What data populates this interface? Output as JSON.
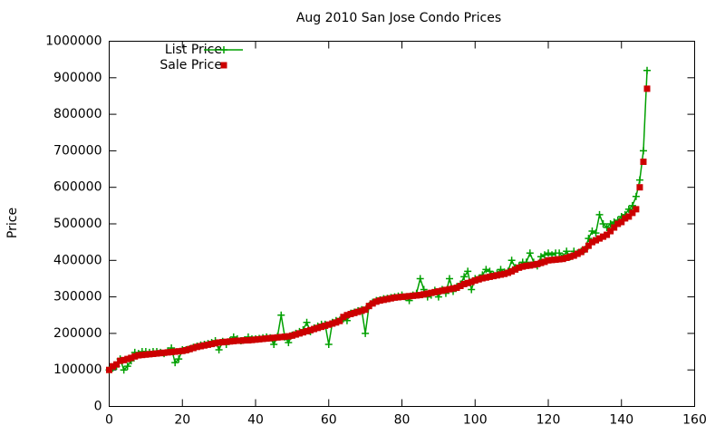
{
  "chart_data": {
    "type": "line",
    "title": "Aug 2010 San Jose Condo Prices",
    "y_label": "Price",
    "x": [
      0,
      1,
      2,
      3,
      4,
      5,
      6,
      7,
      8,
      9,
      10,
      11,
      12,
      13,
      14,
      15,
      16,
      17,
      18,
      19,
      20,
      21,
      22,
      23,
      24,
      25,
      26,
      27,
      28,
      29,
      30,
      31,
      32,
      33,
      34,
      35,
      36,
      37,
      38,
      39,
      40,
      41,
      42,
      43,
      44,
      45,
      46,
      47,
      48,
      49,
      50,
      51,
      52,
      53,
      54,
      55,
      56,
      57,
      58,
      59,
      60,
      61,
      62,
      63,
      64,
      65,
      66,
      67,
      68,
      69,
      70,
      71,
      72,
      73,
      74,
      75,
      76,
      77,
      78,
      79,
      80,
      81,
      82,
      83,
      84,
      85,
      86,
      87,
      88,
      89,
      90,
      91,
      92,
      93,
      94,
      95,
      96,
      97,
      98,
      99,
      100,
      101,
      102,
      103,
      104,
      105,
      106,
      107,
      108,
      109,
      110,
      111,
      112,
      113,
      114,
      115,
      116,
      117,
      118,
      119,
      120,
      121,
      122,
      123,
      124,
      125,
      126,
      127,
      128,
      129,
      130,
      131,
      132,
      133,
      134,
      135,
      136,
      137,
      138,
      139,
      140,
      141,
      142,
      143,
      144,
      145,
      146,
      147
    ],
    "series": [
      {
        "name": "List Price",
        "color": "#00a000",
        "style": "linespoints",
        "values": [
          100000,
          105000,
          110000,
          130000,
          100000,
          110000,
          125000,
          148000,
          145000,
          150000,
          150000,
          148000,
          150000,
          150000,
          148000,
          145000,
          152000,
          160000,
          120000,
          130000,
          155000,
          155000,
          158000,
          162000,
          165000,
          168000,
          170000,
          172000,
          175000,
          180000,
          155000,
          178000,
          170000,
          180000,
          190000,
          185000,
          180000,
          182000,
          190000,
          185000,
          185000,
          186000,
          188000,
          190000,
          188000,
          170000,
          192000,
          250000,
          190000,
          175000,
          195000,
          200000,
          205000,
          210000,
          230000,
          205000,
          215000,
          220000,
          225000,
          225000,
          170000,
          230000,
          235000,
          236000,
          240000,
          235000,
          255000,
          258000,
          262000,
          265000,
          200000,
          275000,
          285000,
          290000,
          292000,
          295000,
          296000,
          298000,
          300000,
          302000,
          305000,
          300000,
          290000,
          305000,
          310000,
          350000,
          320000,
          300000,
          305000,
          318000,
          300000,
          320000,
          310000,
          350000,
          315000,
          328000,
          335000,
          355000,
          370000,
          320000,
          350000,
          350000,
          360000,
          375000,
          370000,
          360000,
          365000,
          375000,
          368000,
          370000,
          400000,
          380000,
          385000,
          395000,
          395000,
          420000,
          395000,
          385000,
          410000,
          415000,
          420000,
          415000,
          420000,
          420000,
          410000,
          425000,
          410000,
          425000,
          420000,
          425000,
          430000,
          460000,
          480000,
          475000,
          525000,
          500000,
          490000,
          500000,
          505000,
          510000,
          520000,
          525000,
          540000,
          550000,
          575000,
          620000,
          700000,
          920000
        ]
      },
      {
        "name": "Sale Price",
        "color": "#cc0000",
        "style": "points",
        "values": [
          100000,
          110000,
          115000,
          125000,
          127000,
          130000,
          133000,
          137000,
          140000,
          141000,
          142000,
          143000,
          144000,
          145000,
          146000,
          147000,
          148000,
          149000,
          150000,
          151000,
          152000,
          154000,
          157000,
          160000,
          163000,
          165000,
          167000,
          169000,
          171000,
          173000,
          175000,
          176000,
          177000,
          178000,
          179000,
          180000,
          180000,
          181000,
          181000,
          182000,
          183000,
          184000,
          185000,
          186000,
          187000,
          188000,
          189000,
          190000,
          191000,
          192000,
          194000,
          197000,
          200000,
          203000,
          206000,
          209000,
          212000,
          215000,
          218000,
          221000,
          224000,
          227000,
          230000,
          234000,
          245000,
          250000,
          253000,
          256000,
          259000,
          262000,
          265000,
          275000,
          282000,
          287000,
          290000,
          292000,
          294000,
          296000,
          298000,
          299000,
          300000,
          301000,
          302000,
          303000,
          304000,
          305000,
          307000,
          309000,
          311000,
          313000,
          315000,
          317000,
          319000,
          321000,
          323000,
          325000,
          330000,
          335000,
          338000,
          341000,
          345000,
          348000,
          351000,
          353000,
          355000,
          357000,
          359000,
          361000,
          363000,
          366000,
          370000,
          375000,
          380000,
          383000,
          385000,
          386000,
          388000,
          390000,
          393000,
          396000,
          400000,
          401000,
          402000,
          403000,
          404000,
          407000,
          410000,
          413000,
          418000,
          423000,
          430000,
          440000,
          450000,
          455000,
          460000,
          465000,
          470000,
          480000,
          490000,
          500000,
          505000,
          515000,
          520000,
          530000,
          540000,
          600000,
          670000,
          870000
        ]
      }
    ],
    "xlim": [
      0,
      160
    ],
    "xticks": [
      0,
      20,
      40,
      60,
      80,
      100,
      120,
      140,
      160
    ],
    "ylim": [
      0,
      1000000
    ],
    "yticks": [
      0,
      100000,
      200000,
      300000,
      400000,
      500000,
      600000,
      700000,
      800000,
      900000,
      1000000
    ],
    "grid": false,
    "legend": "top-left"
  }
}
